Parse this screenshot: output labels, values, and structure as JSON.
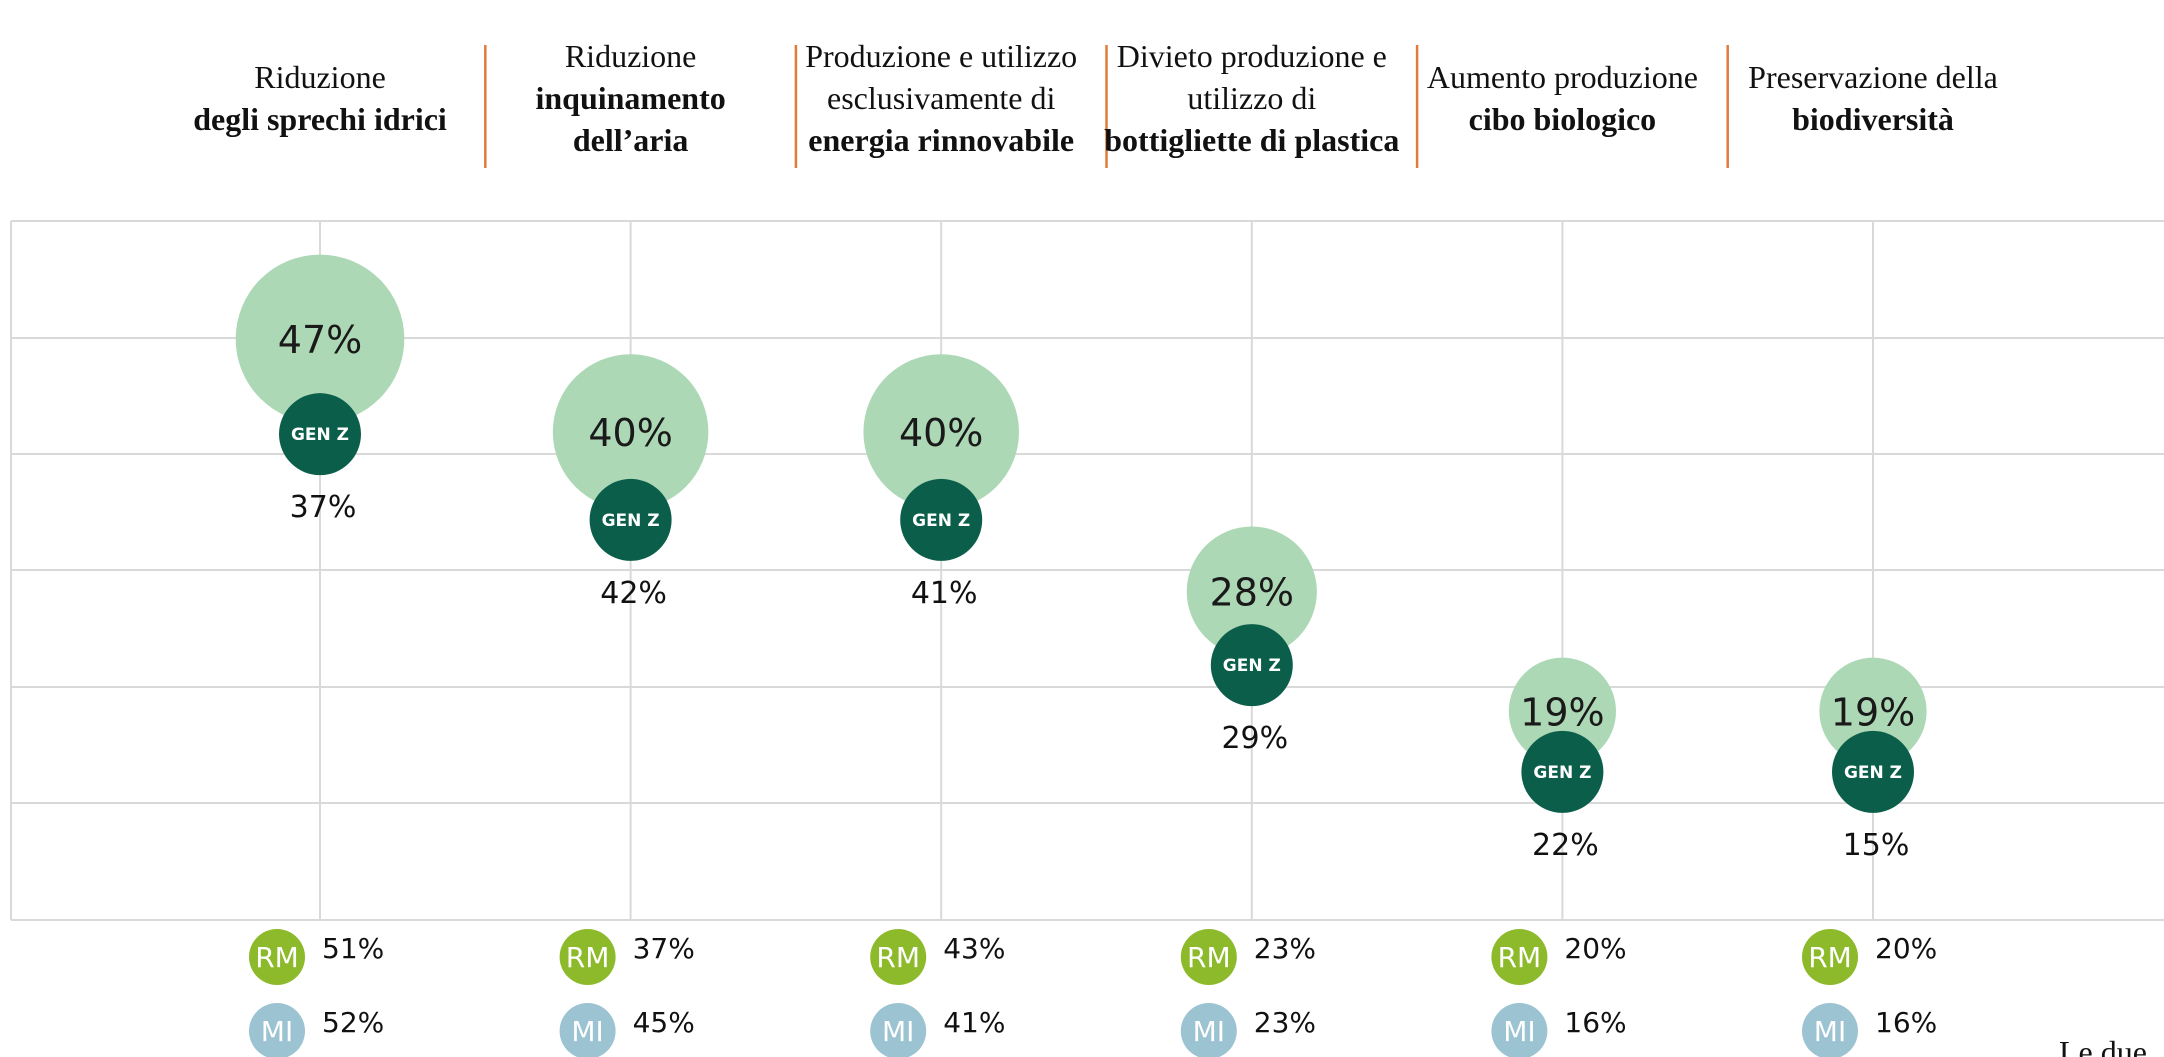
{
  "chart_data": {
    "type": "bubble",
    "categories": [
      {
        "regular": "Riduzione",
        "bold": "degli sprechi idrici"
      },
      {
        "regular": "Riduzione",
        "bold": "inquinamento dell’aria"
      },
      {
        "regular": "Produzione e utilizzo esclusivamente di",
        "bold": "energia rinnovabile"
      },
      {
        "regular": "Divieto produzione e utilizzo di",
        "bold": "bottigliette di plastica"
      },
      {
        "regular": "Aumento produzione",
        "bold": "cibo biologico"
      },
      {
        "regular": "Preservazione della",
        "bold": "biodiversità"
      }
    ],
    "series": [
      {
        "color": "#acd8b5",
        "values": [
          47,
          40,
          40,
          28,
          19,
          19
        ],
        "value_labels": [
          "47%",
          "40%",
          "40%",
          "28%",
          "19%",
          "19%"
        ]
      },
      {
        "name": "GEN Z",
        "color": "#0b5e4a",
        "values": [
          37,
          42,
          41,
          29,
          22,
          15
        ],
        "value_labels": [
          "37%",
          "42%",
          "41%",
          "29%",
          "22%",
          "15%"
        ]
      },
      {
        "name": "RM",
        "color": "#8dba2b",
        "values": [
          51,
          37,
          43,
          23,
          20,
          20
        ],
        "value_labels": [
          "51%",
          "37%",
          "43%",
          "23%",
          "20%",
          "20%"
        ]
      },
      {
        "name": "MI",
        "color": "#9bc3d2",
        "values": [
          52,
          45,
          41,
          23,
          16,
          16
        ],
        "value_labels": [
          "52%",
          "45%",
          "41%",
          "23%",
          "16%",
          "16%"
        ]
      }
    ],
    "note": "Le due"
  }
}
